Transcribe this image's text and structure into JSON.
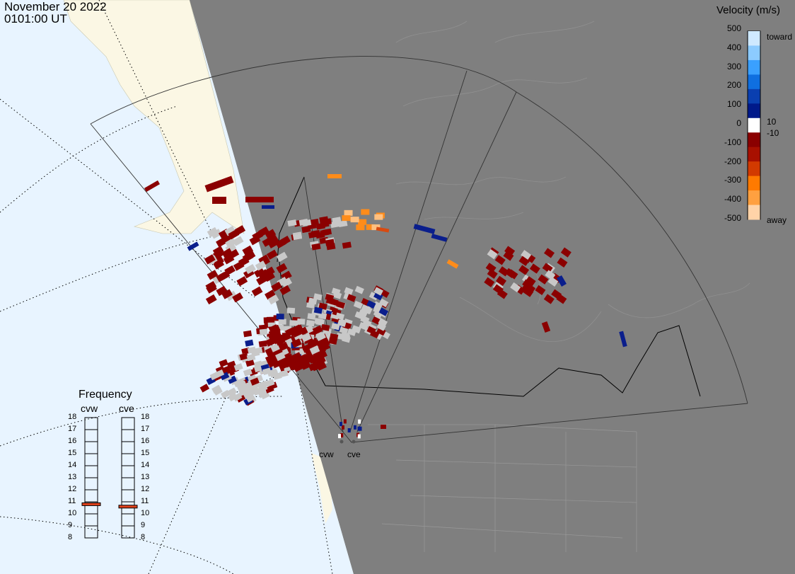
{
  "header": {
    "date": "November 20 2022",
    "time": "0101:00 UT"
  },
  "velocity_scale": {
    "title": "Velocity (m/s)",
    "ticks": [
      "500",
      "400",
      "300",
      "200",
      "100",
      "0",
      "-100",
      "-200",
      "-300",
      "-400",
      "-500"
    ],
    "toward_label": "toward",
    "away_label": "away",
    "threshold_pos": "10",
    "threshold_neg": "-10",
    "colors": [
      "#cfe9ff",
      "#8ccbff",
      "#3aa0ff",
      "#0f6fe0",
      "#0a3fb0",
      "#00198a",
      "#ffffff",
      "#8a0000",
      "#a81000",
      "#d23a00",
      "#ff7a00",
      "#ffa040",
      "#ffd3a8"
    ]
  },
  "frequency_panel": {
    "title": "Frequency",
    "radars": [
      "cvw",
      "cve"
    ],
    "scale": [
      "18",
      "17",
      "16",
      "15",
      "14",
      "13",
      "12",
      "11",
      "10",
      "9",
      "8"
    ],
    "values_mhz": [
      10.8,
      10.6
    ],
    "marker_color": "#e0401a"
  },
  "radar_sites": [
    "cvw",
    "cve"
  ],
  "map_colors": {
    "ocean": "#e8f4ff",
    "land_dark": "#7f7f7f",
    "land_light": "#fbf7e4",
    "echo_red": "#8b0000",
    "ground_scatter": "#c8c8c8"
  }
}
